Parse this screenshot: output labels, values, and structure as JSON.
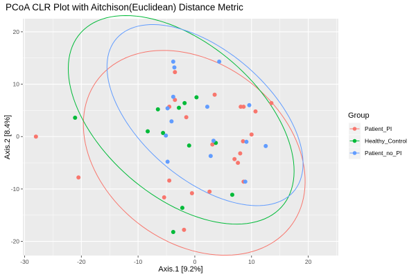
{
  "chart_data": {
    "type": "scatter",
    "title": "PCoA CLR Plot with Aitchison(Euclidean) Distance Metric",
    "xlabel": "Axis.1   [9.2%]",
    "ylabel": "Axis.2   [8.4%]",
    "xlim": [
      -30.3,
      25.3
    ],
    "ylim": [
      -22.7,
      22.5
    ],
    "xticks": [
      -30,
      -20,
      -10,
      0,
      10,
      20
    ],
    "yticks": [
      -20,
      -10,
      0,
      10,
      20
    ],
    "grid": true,
    "legend": {
      "title": "Group",
      "position": "right"
    },
    "series": [
      {
        "name": "Patient_PI",
        "color": "#F8766D",
        "points": [
          [
            -28.0,
            0.0
          ],
          [
            -20.5,
            -7.8
          ],
          [
            -3.5,
            12.3
          ],
          [
            -3.5,
            7.0
          ],
          [
            -4.5,
            5.7
          ],
          [
            -1.5,
            3.7
          ],
          [
            3.5,
            8.0
          ],
          [
            8.1,
            5.7
          ],
          [
            8.6,
            5.7
          ],
          [
            10.7,
            4.8
          ],
          [
            13.5,
            6.4
          ],
          [
            10.0,
            0.4
          ],
          [
            3.1,
            -1.5
          ],
          [
            8.5,
            -0.9
          ],
          [
            8.0,
            -3.2
          ],
          [
            7.0,
            -4.3
          ],
          [
            7.6,
            -5.0
          ],
          [
            -4.5,
            -8.4
          ],
          [
            -0.5,
            -10.8
          ],
          [
            2.6,
            -10.5
          ],
          [
            8.6,
            -8.6
          ],
          [
            -5.4,
            -11.6
          ],
          [
            -1.9,
            -17.8
          ]
        ]
      },
      {
        "name": "Healthy_Control",
        "color": "#00BA38",
        "points": [
          [
            -21.1,
            3.6
          ],
          [
            -6.5,
            5.2
          ],
          [
            -2.8,
            5.5
          ],
          [
            -1.8,
            6.4
          ],
          [
            0.3,
            7.5
          ],
          [
            -8.3,
            1.0
          ],
          [
            -5.6,
            0.7
          ],
          [
            -1.0,
            -1.7
          ],
          [
            3.7,
            -1.2
          ],
          [
            6.6,
            -11.1
          ],
          [
            -2.2,
            -13.6
          ],
          [
            -3.8,
            -18.2
          ]
        ]
      },
      {
        "name": "Patient_no_PI",
        "color": "#619CFF",
        "points": [
          [
            -3.8,
            14.3
          ],
          [
            -3.6,
            13.2
          ],
          [
            4.3,
            14.3
          ],
          [
            -3.8,
            7.6
          ],
          [
            -4.8,
            5.4
          ],
          [
            2.2,
            5.7
          ],
          [
            -4.1,
            2.9
          ],
          [
            9.6,
            6.0
          ],
          [
            -5.1,
            0.2
          ],
          [
            3.3,
            -0.8
          ],
          [
            9.1,
            -1.0
          ],
          [
            12.5,
            -1.8
          ],
          [
            2.8,
            -3.7
          ],
          [
            -4.8,
            -4.8
          ],
          [
            8.9,
            -8.6
          ]
        ]
      }
    ],
    "ellipses": [
      {
        "group": "Patient_PI",
        "color": "#F8766D",
        "center": [
          -0.1,
          -3.1
        ],
        "radius_along_minus45deg": 22.1,
        "radius_along_plus45deg": 16.6
      },
      {
        "group": "Healthy_Control",
        "color": "#00BA38",
        "center": [
          -2.4,
          3.2
        ],
        "radius_along_minus45deg": 24.3,
        "radius_along_plus45deg": 14.2
      },
      {
        "group": "Patient_no_PI",
        "color": "#619CFF",
        "center": [
          1.8,
          4.1
        ],
        "radius_along_minus45deg": 21.4,
        "radius_along_plus45deg": 11.8
      }
    ]
  }
}
